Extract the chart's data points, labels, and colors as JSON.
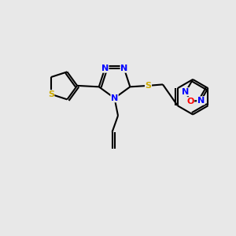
{
  "bg_color": "#e8e8e8",
  "bond_color": "#000000",
  "bond_width": 1.5,
  "atom_colors": {
    "N": "#0000ff",
    "S": "#ccaa00",
    "O": "#ff0000",
    "C": "#000000"
  },
  "fig_bg": "#e8e8e8",
  "xlim": [
    0,
    10
  ],
  "ylim": [
    0,
    10
  ]
}
